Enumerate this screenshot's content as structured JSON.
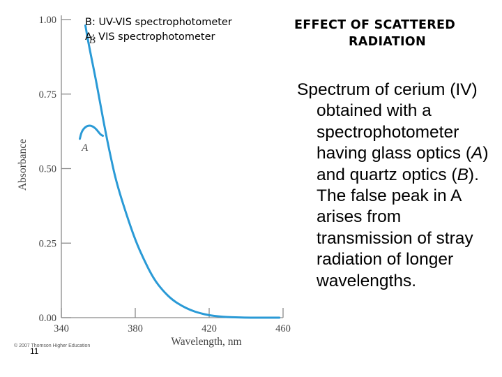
{
  "slide": {
    "title_line1": "EFFECT OF SCATTERED",
    "title_line2": "RADIATION",
    "caption": {
      "p1": "Spectrum  of cerium (IV) obtained with a spectrophotometer having glass optics (",
      "a_label": "A",
      "p2": ") and quartz optics (",
      "b_label": "B",
      "p3": "). The false peak in A arises from transmission of stray radiation of longer wavelengths."
    },
    "page_number": "11"
  },
  "chart_data": {
    "type": "line",
    "xlabel": "Wavelength, nm",
    "ylabel": "Absorbance",
    "xlim": [
      340,
      460
    ],
    "ylim": [
      0,
      1.0
    ],
    "x_ticks": [
      340,
      380,
      420,
      460
    ],
    "x_tick_labels": [
      "340",
      "380",
      "420",
      "460"
    ],
    "y_ticks": [
      0,
      0.25,
      0.5,
      0.75,
      1.0
    ],
    "y_tick_labels": [
      "0.00",
      "0.25",
      "0.50",
      "0.75",
      "1.00"
    ],
    "grid": false,
    "legend": {
      "position": "top-left",
      "entries": [
        "B: UV-VIS spectrophotometer",
        "A: VIS spectrophotometer"
      ]
    },
    "series_color": "#2a9ad6",
    "series": [
      {
        "name": "B",
        "x": [
          353,
          355,
          358,
          361,
          364,
          367,
          370,
          375,
          380,
          385,
          390,
          395,
          400,
          405,
          410,
          415,
          420,
          425,
          430,
          435,
          440,
          450,
          458
        ],
        "y": [
          0.98,
          0.91,
          0.82,
          0.72,
          0.62,
          0.53,
          0.45,
          0.35,
          0.26,
          0.19,
          0.13,
          0.09,
          0.06,
          0.04,
          0.025,
          0.015,
          0.008,
          0.004,
          0.002,
          0.001,
          0.0,
          0.0,
          0.0
        ]
      },
      {
        "name": "A",
        "x": [
          350,
          351,
          353,
          355,
          357,
          359,
          361,
          362.5
        ],
        "y": [
          0.6,
          0.625,
          0.64,
          0.645,
          0.642,
          0.632,
          0.615,
          0.61
        ]
      }
    ],
    "annotations": [
      {
        "text": "B",
        "x": 355,
        "y": 0.92
      },
      {
        "text": "A",
        "x": 351,
        "y": 0.56
      }
    ],
    "copyright": "© 2007 Thomson Higher Education"
  }
}
